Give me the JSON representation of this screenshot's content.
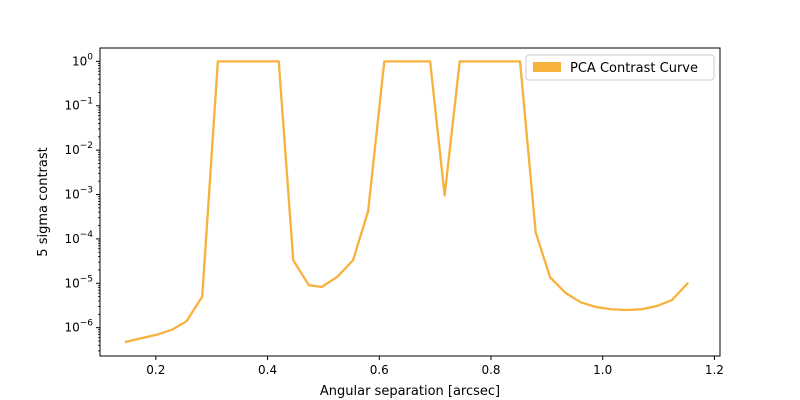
{
  "chart_data": {
    "type": "line",
    "xlabel": "Angular separation [arcsec]",
    "ylabel": "5 sigma contrast",
    "yscale": "log",
    "xlim": [
      0.1,
      1.21
    ],
    "ylim": [
      2.3e-07,
      2.0
    ],
    "grid": false,
    "legend_position": "top-right",
    "x_ticks": [
      0.2,
      0.4,
      0.6,
      0.8,
      1.0,
      1.2
    ],
    "x_tick_labels": [
      "0.2",
      "0.4",
      "0.6",
      "0.8",
      "1.0",
      "1.2"
    ],
    "y_ticks": [
      1e-06,
      1e-05,
      0.0001,
      0.001,
      0.01,
      0.1,
      1
    ],
    "y_tick_labels": [
      {
        "base": "10",
        "exp": "−6"
      },
      {
        "base": "10",
        "exp": "−5"
      },
      {
        "base": "10",
        "exp": "−4"
      },
      {
        "base": "10",
        "exp": "−3"
      },
      {
        "base": "10",
        "exp": "−2"
      },
      {
        "base": "10",
        "exp": "−1"
      },
      {
        "base": "10",
        "exp": "0"
      }
    ],
    "series": [
      {
        "name": "PCA Contrast Curve",
        "color": "#f8b13d",
        "x": [
          0.146,
          0.175,
          0.203,
          0.229,
          0.255,
          0.283,
          0.311,
          0.34,
          0.368,
          0.396,
          0.42,
          0.446,
          0.474,
          0.497,
          0.525,
          0.553,
          0.58,
          0.609,
          0.636,
          0.664,
          0.691,
          0.717,
          0.744,
          0.772,
          0.8,
          0.828,
          0.852,
          0.88,
          0.906,
          0.934,
          0.961,
          0.989,
          1.015,
          1.043,
          1.07,
          1.098,
          1.124,
          1.152
        ],
        "y": [
          4.8e-07,
          5.8e-07,
          7e-07,
          9e-07,
          1.4e-06,
          5e-06,
          1.0,
          1.0,
          1.0,
          1.0,
          1.0,
          3.3e-05,
          9e-06,
          8.3e-06,
          1.4e-05,
          3.3e-05,
          0.00042,
          1.0,
          1.0,
          1.0,
          1.0,
          0.00095,
          1.0,
          1.0,
          1.0,
          1.0,
          1.0,
          0.00014,
          1.35e-05,
          6e-06,
          3.7e-06,
          2.9e-06,
          2.6e-06,
          2.5e-06,
          2.6e-06,
          3.1e-06,
          4.2e-06,
          1e-05
        ]
      }
    ]
  }
}
